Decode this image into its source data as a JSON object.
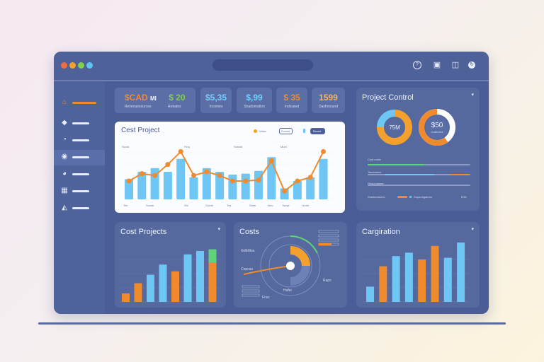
{
  "titlebar": {
    "dots": [
      "#ef6d3f",
      "#f3a12c",
      "#7fd04c",
      "#5cc4f0"
    ],
    "icons": [
      "help-icon",
      "camera-icon",
      "book-icon",
      "refresh-icon"
    ]
  },
  "sidebar": {
    "items": [
      {
        "icon": "home-icon",
        "active": false,
        "highlight": true
      },
      {
        "icon": "tag-icon",
        "active": false
      },
      {
        "icon": "chart-icon",
        "active": false
      },
      {
        "icon": "gauge-icon",
        "active": true
      },
      {
        "icon": "pie-icon",
        "active": false
      },
      {
        "icon": "calendar-icon",
        "active": false
      },
      {
        "icon": "users-icon",
        "active": false
      }
    ]
  },
  "kpis": [
    {
      "value": "$CAD",
      "value2": "Ml",
      "label": "Revenuesources",
      "color": "#f08a2c",
      "color2": "#f7f8fd"
    },
    {
      "value": "$ 20",
      "value2": "",
      "label": "Rebates",
      "color": "#7fd04c",
      "color2": ""
    },
    {
      "value": "$5,35",
      "value2": "",
      "label": "Incomes",
      "color": "#6fd0ff",
      "color2": ""
    },
    {
      "value": "$,99",
      "value2": "",
      "label": "Shadomation",
      "color": "#6fd0ff",
      "color2": ""
    },
    {
      "value": "$ 35",
      "value2": "",
      "label": "Indicated",
      "color": "#f08a2c",
      "color2": ""
    },
    {
      "value": "1599",
      "value2": "",
      "label": "Dashmound",
      "color": "#f7b267",
      "color2": ""
    }
  ],
  "cost_project_top": {
    "title": "Cest Project",
    "legend": [
      "Valiar",
      "Fonset",
      "Bosed"
    ],
    "section_labels": [
      "Scold",
      "Finq",
      "Scbold",
      "Muni"
    ],
    "x_labels": [
      "Tim",
      "Sunsb",
      "Shi",
      "Gomb",
      "Tos",
      "Sheb",
      "Ilmo",
      "Tomyl",
      "Lumb"
    ]
  },
  "project_control": {
    "title": "Project Control",
    "donut1_value": "75M",
    "donut2_value": "$50",
    "donut2_label": "Collected",
    "bar_labels": [
      "Cost costs",
      "Tasobases",
      "Resuphages"
    ],
    "legend": [
      "Sestionatures",
      "Supouhgatorio",
      "$ 80"
    ]
  },
  "cost_projects_bottom": {
    "title": "Cost Projects"
  },
  "costs": {
    "title": "Costs",
    "labels": [
      "Gdbilitsa",
      "Copcas",
      "Raps",
      "Hafer",
      "Frisc"
    ],
    "center_value": "0"
  },
  "cargiration": {
    "title": "Cargiration"
  },
  "colors": {
    "orange": "#f08a2c",
    "blue": "#6ec6f5",
    "green": "#5ed37a",
    "window": "#4a5d96"
  },
  "chart_data": [
    {
      "type": "bar",
      "title": "Cest Project",
      "values": [
        22,
        30,
        34,
        30,
        44,
        24,
        34,
        30,
        27,
        28,
        31,
        46,
        12,
        20,
        24,
        44
      ],
      "line_values": [
        20,
        28,
        26,
        38,
        52,
        26,
        30,
        26,
        20,
        20,
        21,
        42,
        9,
        20,
        24,
        52
      ]
    },
    {
      "type": "bar",
      "title": "Cost Projects",
      "values": [
        10,
        22,
        32,
        44,
        36,
        56,
        60,
        46
      ],
      "colors": [
        "#f08a2c",
        "#f08a2c",
        "#6ec6f5",
        "#6ec6f5",
        "#f08a2c",
        "#6ec6f5",
        "#6ec6f5",
        "#f08a2c"
      ],
      "top_segment": {
        "index": 7,
        "value": 16,
        "color": "#5ed37a"
      }
    },
    {
      "type": "bar",
      "title": "Cargiration",
      "values": [
        18,
        42,
        54,
        58,
        50,
        66,
        52,
        70
      ],
      "colors": [
        "#6ec6f5",
        "#f08a2c",
        "#6ec6f5",
        "#6ec6f5",
        "#f08a2c",
        "#f08a2c",
        "#6ec6f5",
        "#6ec6f5"
      ]
    },
    {
      "type": "pie",
      "title": "Project Control",
      "slices": [
        {
          "value": 75,
          "color": "#f3a12c"
        },
        {
          "value": 25,
          "color": "#6ec6f5"
        }
      ]
    }
  ]
}
